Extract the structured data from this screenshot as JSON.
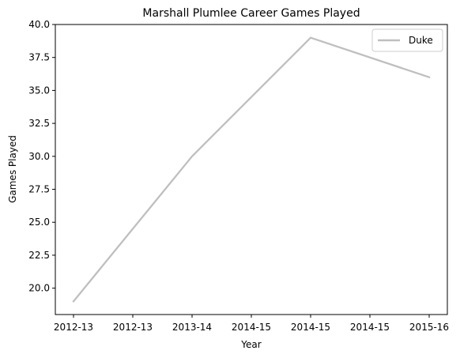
{
  "chart_data": {
    "type": "line",
    "title": "Marshall Plumlee Career Games Played",
    "xlabel": "Year",
    "ylabel": "Games Played",
    "x_ticks": [
      "2012-13",
      "2012-13",
      "2013-14",
      "2014-15",
      "2014-15",
      "2014-15",
      "2015-16"
    ],
    "x": [
      "2012-13",
      "2013-14",
      "2014-15",
      "2015-16"
    ],
    "series": [
      {
        "name": "Duke",
        "values": [
          19,
          30,
          39,
          36
        ],
        "color": "#bfbfbf"
      }
    ],
    "ylim": [
      18.0,
      40.0
    ],
    "y_ticks": [
      20.0,
      22.5,
      25.0,
      27.5,
      30.0,
      32.5,
      35.0,
      37.5,
      40.0
    ],
    "y_tick_labels": [
      "20.0",
      "22.5",
      "25.0",
      "27.5",
      "30.0",
      "32.5",
      "35.0",
      "37.5",
      "40.0"
    ],
    "grid": false,
    "legend_position": "top-right"
  }
}
